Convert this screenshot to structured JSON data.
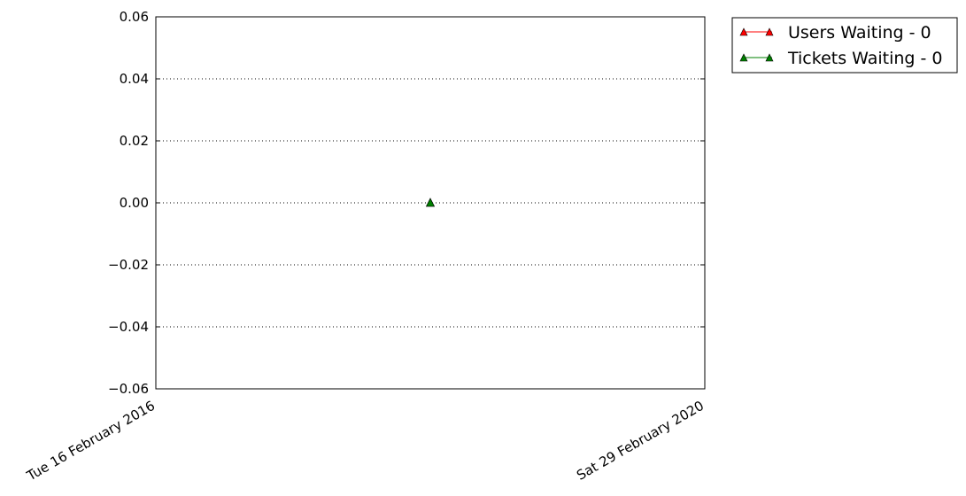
{
  "chart_data": {
    "type": "line",
    "title": "",
    "xlabel": "",
    "ylabel": "",
    "x_ticks": [
      "Tue 16 February 2016",
      "Sat 29 February 2020"
    ],
    "xlim": [
      "2016-02-16",
      "2020-02-29"
    ],
    "ylim": [
      -0.06,
      0.06
    ],
    "y_ticks": [
      "0.06",
      "0.04",
      "0.02",
      "0.00",
      "−0.02",
      "−0.04",
      "−0.06"
    ],
    "grid": "horizontal dotted",
    "legend": "outside-top-right",
    "series": [
      {
        "name": "Users Waiting - 0",
        "color": "#ff0000",
        "marker": "triangle-up",
        "points": [
          {
            "x": "2018-02-22",
            "y": 0
          }
        ]
      },
      {
        "name": "Tickets Waiting - 0",
        "color": "#008000",
        "marker": "triangle-up",
        "points": [
          {
            "x": "2018-02-22",
            "y": 0
          }
        ]
      }
    ]
  }
}
